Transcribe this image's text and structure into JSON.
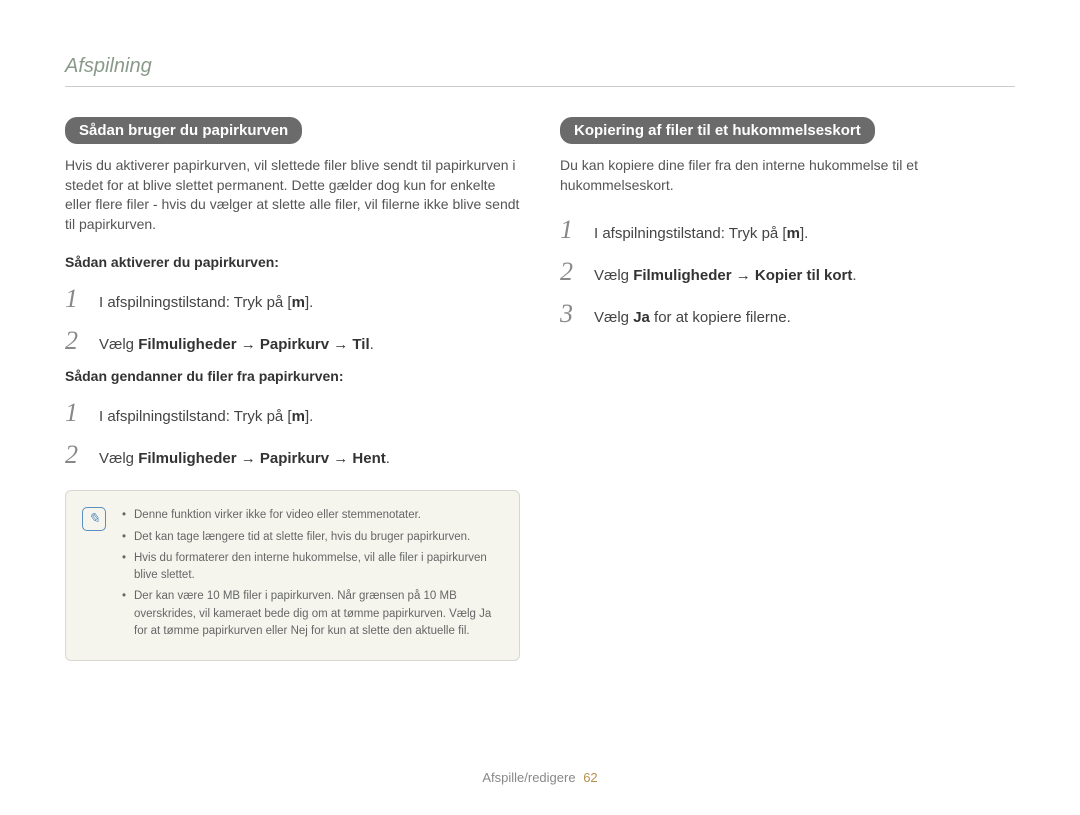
{
  "header": "Afspilning",
  "left": {
    "pill": "Sådan bruger du papirkurven",
    "intro": "Hvis du aktiverer papirkurven, vil slettede ﬁler blive sendt til papirkurven i stedet for at blive slettet permanent. Dette gælder dog kun for enkelte eller ﬂere ﬁler - hvis du vælger at slette alle ﬁler, vil ﬁlerne ikke blive sendt til papirkurven.",
    "sub1": "Sådan aktiverer du papirkurven:",
    "steps1": [
      {
        "n": "1",
        "prefix": "I afspilningstilstand: Tryk på [",
        "key": "m",
        "suffix": "]."
      },
      {
        "n": "2",
        "prefix": "Vælg ",
        "bold": "Filmuligheder → Papirkurv → Til",
        "suffix": "."
      }
    ],
    "sub2": "Sådan gendanner du ﬁler fra papirkurven:",
    "steps2": [
      {
        "n": "1",
        "prefix": "I afspilningstilstand: Tryk på [",
        "key": "m",
        "suffix": "]."
      },
      {
        "n": "2",
        "prefix": "Vælg ",
        "bold": "Filmuligheder → Papirkurv → Hent",
        "suffix": "."
      }
    ],
    "notes": [
      "Denne funktion virker ikke for video eller stemmenotater.",
      "Det kan tage længere tid at slette ﬁler, hvis du bruger papirkurven.",
      "Hvis du formaterer den interne hukommelse, vil alle ﬁler i papirkurven blive slettet.",
      "Der kan være 10 MB ﬁler i papirkurven. Når grænsen på 10 MB overskrides, vil kameraet bede dig om at tømme papirkurven. Vælg Ja for at tømme papirkurven eller Nej for kun at slette den aktuelle ﬁl."
    ]
  },
  "right": {
    "pill": "Kopiering af ﬁler til et hukommelseskort",
    "intro": "Du kan kopiere dine ﬁler fra den interne hukommelse til et hukommelseskort.",
    "steps": [
      {
        "n": "1",
        "prefix": "I afspilningstilstand: Tryk på [",
        "key": "m",
        "suffix": "]."
      },
      {
        "n": "2",
        "prefix": "Vælg ",
        "bold": "Filmuligheder → Kopier til kort",
        "suffix": "."
      },
      {
        "n": "3",
        "prefix": "Vælg ",
        "bold": "Ja",
        "suffix": " for at kopiere ﬁlerne."
      }
    ]
  },
  "footer": {
    "text": "Afspille/redigere",
    "page": "62"
  }
}
